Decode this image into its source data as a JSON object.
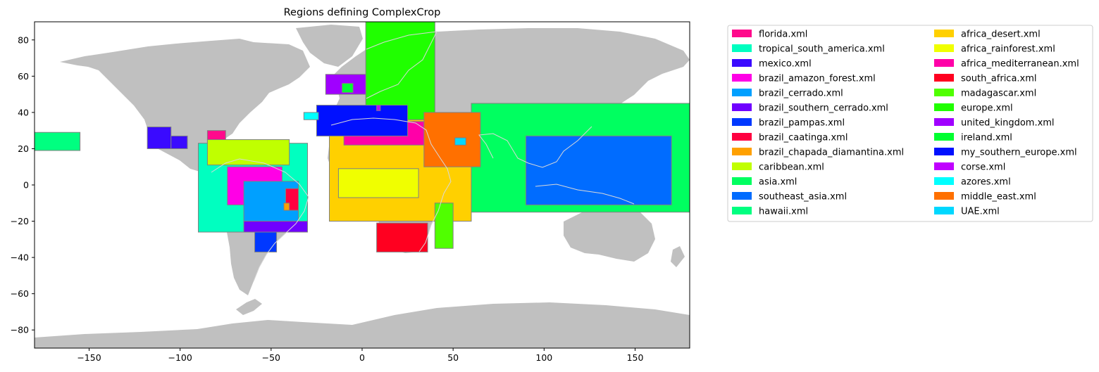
{
  "title": "Regions defining ComplexCrop",
  "axes": {
    "xlim": [
      -180,
      180
    ],
    "ylim": [
      -90,
      90
    ],
    "xticks": [
      -150,
      -100,
      -50,
      0,
      50,
      100,
      150
    ],
    "yticks": [
      -80,
      -60,
      -40,
      -20,
      0,
      20,
      40,
      60,
      80
    ],
    "land_color": "#c0c0c0",
    "coast_color": "#e6e6e6"
  },
  "chart_data": {
    "type": "map",
    "title": "Regions defining ComplexCrop",
    "xlim": [
      -180,
      180
    ],
    "ylim": [
      -90,
      90
    ],
    "grid": false,
    "legend_placement": "outside-right",
    "regions": [
      {
        "name": "florida.xml",
        "color": "#ff0a8c",
        "lon": [
          -85,
          -75
        ],
        "lat": [
          20,
          30
        ]
      },
      {
        "name": "tropical_south_america.xml",
        "color": "#00ffc0",
        "lon": [
          -90,
          -30
        ],
        "lat": [
          -26,
          23
        ]
      },
      {
        "name": "mexico.xml",
        "color": "#3a0aff",
        "lon": [
          -118,
          -97
        ],
        "lat": [
          20,
          32
        ],
        "extra": [
          {
            "lon": [
              -118,
              -105
            ],
            "lat": [
              20,
              32
            ]
          },
          {
            "lon": [
              -105,
              -96
            ],
            "lat": [
              20,
              27
            ]
          }
        ]
      },
      {
        "name": "brazil_amazon_forest.xml",
        "color": "#ff00e6",
        "lon": [
          -74,
          -44
        ],
        "lat": [
          -11,
          10
        ]
      },
      {
        "name": "brazil_cerrado.xml",
        "color": "#00a0ff",
        "lon": [
          -65,
          -35
        ],
        "lat": [
          -20,
          2
        ]
      },
      {
        "name": "brazil_southern_cerrado.xml",
        "color": "#7000ff",
        "lon": [
          -65,
          -30
        ],
        "lat": [
          -26,
          -20
        ]
      },
      {
        "name": "brazil_pampas.xml",
        "color": "#0038ff",
        "lon": [
          -59,
          -47
        ],
        "lat": [
          -37,
          -26
        ]
      },
      {
        "name": "brazil_caatinga.xml",
        "color": "#ff0040",
        "lon": [
          -42,
          -35
        ],
        "lat": [
          -14,
          -2
        ]
      },
      {
        "name": "brazil_chapada_diamantina.xml",
        "color": "#ffa000",
        "lon": [
          -43,
          -40
        ],
        "lat": [
          -14,
          -10
        ]
      },
      {
        "name": "caribbean.xml",
        "color": "#c0ff00",
        "lon": [
          -85,
          -40
        ],
        "lat": [
          11,
          25
        ]
      },
      {
        "name": "asia.xml",
        "color": "#00ff60",
        "lon": [
          60,
          180
        ],
        "lat": [
          -15,
          45
        ]
      },
      {
        "name": "southeast_asia.xml",
        "color": "#006cff",
        "lon": [
          90,
          170
        ],
        "lat": [
          -11,
          27
        ]
      },
      {
        "name": "hawaii.xml",
        "color": "#00ff80",
        "lon": [
          -180,
          -155
        ],
        "lat": [
          19,
          29
        ]
      },
      {
        "name": "africa_desert.xml",
        "color": "#ffd000",
        "lon": [
          -18,
          60
        ],
        "lat": [
          -20,
          36
        ]
      },
      {
        "name": "africa_rainforest.xml",
        "color": "#f0ff00",
        "lon": [
          -13,
          31
        ],
        "lat": [
          -7,
          9
        ]
      },
      {
        "name": "africa_mediterranean.xml",
        "color": "#ff00a8",
        "lon": [
          -10,
          37
        ],
        "lat": [
          22,
          35
        ]
      },
      {
        "name": "south_africa.xml",
        "color": "#ff0020",
        "lon": [
          8,
          36
        ],
        "lat": [
          -37,
          -21
        ]
      },
      {
        "name": "madagascar.xml",
        "color": "#50ff00",
        "lon": [
          40,
          50
        ],
        "lat": [
          -35,
          -10
        ]
      },
      {
        "name": "europe.xml",
        "color": "#20ff00",
        "lon": [
          2,
          40
        ],
        "lat": [
          36,
          90
        ]
      },
      {
        "name": "united_kingdom.xml",
        "color": "#a000ff",
        "lon": [
          -20,
          2
        ],
        "lat": [
          50,
          61
        ]
      },
      {
        "name": "ireland.xml",
        "color": "#00ff30",
        "lon": [
          -11,
          -5
        ],
        "lat": [
          51,
          56
        ]
      },
      {
        "name": "my_southern_europe.xml",
        "color": "#0010ff",
        "lon": [
          -25,
          25
        ],
        "lat": [
          27,
          44
        ]
      },
      {
        "name": "corse.xml",
        "color": "#c000ff",
        "lon": [
          8,
          10
        ],
        "lat": [
          41,
          44
        ]
      },
      {
        "name": "azores.xml",
        "color": "#00ffff",
        "lon": [
          -32,
          -24
        ],
        "lat": [
          36,
          40
        ]
      },
      {
        "name": "middle_east.xml",
        "color": "#ff7000",
        "lon": [
          34,
          65
        ],
        "lat": [
          10,
          40
        ]
      },
      {
        "name": "UAE.xml",
        "color": "#00d8ff",
        "lon": [
          51,
          57
        ],
        "lat": [
          22,
          26
        ]
      }
    ]
  }
}
